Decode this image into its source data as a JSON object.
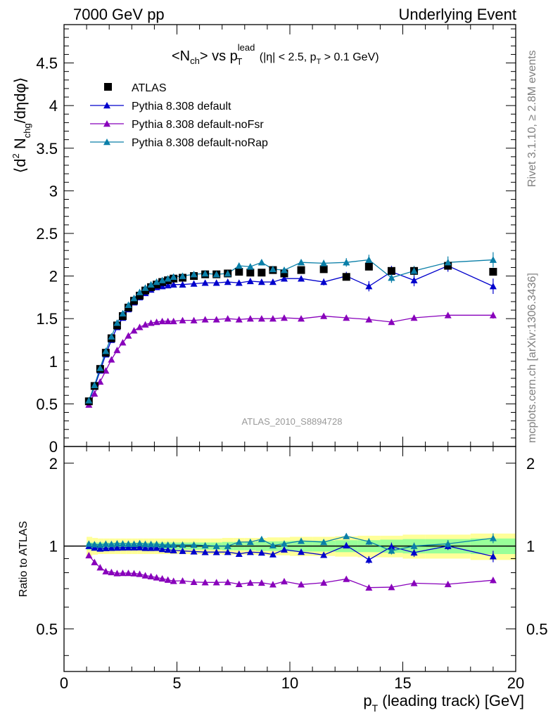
{
  "header": {
    "left": "7000 GeV pp",
    "right": "Underlying Event"
  },
  "side_labels": {
    "rivet": "Rivet 3.1.10, ≥ 2.8M events",
    "mcplots": "mcplots.cern.ch [arXiv:1306.3436]"
  },
  "chart_data": {
    "type": "scatter",
    "title_parts": {
      "lhs": "<N",
      "lhs_sub": "ch",
      "vs": "> vs p",
      "vs_sub": "T",
      "vs_sup": "lead",
      "cuts": "(|η| < 2.5, p",
      "cuts_sub": "T",
      "cuts_end": " > 0.1 GeV)"
    },
    "analysis_label": "ATLAS_2010_S8894728",
    "ylabel": "⟨d² N_chg/dηdφ⟩",
    "ratio_ylabel": "Ratio to ATLAS",
    "xlabel": "p_T (leading track) [GeV]",
    "xlim": [
      0,
      20
    ],
    "ylim": [
      0,
      4.95
    ],
    "ratio_ylim": [
      0.35,
      2.3
    ],
    "x_ticks": [
      "0",
      "5",
      "10",
      "15",
      "20"
    ],
    "y_ticks": [
      "0",
      "0.5",
      "1",
      "1.5",
      "2",
      "2.5",
      "3",
      "3.5",
      "4",
      "4.5"
    ],
    "ratio_ticks": [
      "0.5",
      "1",
      "2"
    ],
    "legend_position": "top-left",
    "x": [
      1.1,
      1.35,
      1.6,
      1.85,
      2.1,
      2.35,
      2.6,
      2.85,
      3.1,
      3.35,
      3.6,
      3.85,
      4.1,
      4.35,
      4.6,
      4.85,
      5.25,
      5.75,
      6.25,
      6.75,
      7.25,
      7.75,
      8.25,
      8.75,
      9.25,
      9.75,
      10.5,
      11.5,
      12.5,
      13.5,
      14.5,
      15.5,
      17.0,
      19.0
    ],
    "band_edges": [
      1.0,
      1.25,
      1.5,
      1.75,
      2.0,
      2.25,
      2.5,
      2.75,
      3.0,
      3.25,
      3.5,
      3.75,
      4.0,
      4.25,
      4.5,
      4.75,
      5.0,
      5.5,
      6.0,
      6.5,
      7.0,
      7.5,
      8.0,
      8.5,
      9.0,
      9.5,
      10.0,
      11.0,
      12.0,
      13.0,
      14.0,
      15.0,
      16.0,
      18.0,
      20.0
    ],
    "band_stat": [
      0.03,
      0.03,
      0.03,
      0.03,
      0.03,
      0.03,
      0.03,
      0.03,
      0.03,
      0.03,
      0.03,
      0.03,
      0.03,
      0.03,
      0.03,
      0.03,
      0.03,
      0.03,
      0.03,
      0.03,
      0.035,
      0.035,
      0.035,
      0.04,
      0.04,
      0.04,
      0.045,
      0.045,
      0.05,
      0.05,
      0.055,
      0.06,
      0.06,
      0.065
    ],
    "band_total": [
      0.08,
      0.07,
      0.065,
      0.065,
      0.065,
      0.065,
      0.065,
      0.065,
      0.065,
      0.065,
      0.065,
      0.065,
      0.065,
      0.065,
      0.065,
      0.065,
      0.065,
      0.065,
      0.065,
      0.065,
      0.07,
      0.07,
      0.07,
      0.07,
      0.075,
      0.075,
      0.08,
      0.08,
      0.085,
      0.09,
      0.09,
      0.1,
      0.1,
      0.11
    ],
    "atlas": [
      0.53,
      0.71,
      0.91,
      1.1,
      1.27,
      1.42,
      1.53,
      1.63,
      1.71,
      1.77,
      1.83,
      1.87,
      1.9,
      1.93,
      1.95,
      1.97,
      1.98,
      2.0,
      2.02,
      2.02,
      2.03,
      2.05,
      2.04,
      2.04,
      2.07,
      2.03,
      2.07,
      2.08,
      1.99,
      2.11,
      2.06,
      2.06,
      2.12,
      2.05
    ],
    "series": [
      {
        "name": "Pythia 8.308 default",
        "color": "#0000cc",
        "values": [
          0.53,
          0.7,
          0.89,
          1.08,
          1.25,
          1.4,
          1.51,
          1.61,
          1.69,
          1.75,
          1.8,
          1.84,
          1.87,
          1.88,
          1.89,
          1.9,
          1.9,
          1.91,
          1.92,
          1.92,
          1.93,
          1.92,
          1.94,
          1.93,
          1.93,
          1.97,
          1.97,
          1.93,
          2.0,
          1.88,
          2.05,
          1.95,
          2.12,
          1.88
        ],
        "errors": [
          0.01,
          0.01,
          0.01,
          0.01,
          0.01,
          0.01,
          0.01,
          0.01,
          0.01,
          0.01,
          0.01,
          0.01,
          0.01,
          0.01,
          0.01,
          0.01,
          0.01,
          0.01,
          0.01,
          0.01,
          0.01,
          0.02,
          0.02,
          0.02,
          0.02,
          0.03,
          0.03,
          0.04,
          0.05,
          0.06,
          0.07,
          0.07,
          0.07,
          0.09
        ]
      },
      {
        "name": "Pythia 8.308 default-noFsr",
        "color": "#8800bb",
        "values": [
          0.49,
          0.62,
          0.76,
          0.89,
          1.02,
          1.13,
          1.22,
          1.3,
          1.36,
          1.4,
          1.43,
          1.45,
          1.46,
          1.47,
          1.47,
          1.47,
          1.48,
          1.48,
          1.49,
          1.49,
          1.5,
          1.49,
          1.5,
          1.5,
          1.5,
          1.51,
          1.5,
          1.53,
          1.51,
          1.49,
          1.46,
          1.51,
          1.54,
          1.54
        ],
        "errors": [
          0.01,
          0.01,
          0.01,
          0.01,
          0.01,
          0.01,
          0.01,
          0.01,
          0.01,
          0.01,
          0.01,
          0.01,
          0.01,
          0.01,
          0.01,
          0.01,
          0.01,
          0.01,
          0.01,
          0.01,
          0.01,
          0.01,
          0.01,
          0.01,
          0.01,
          0.02,
          0.02,
          0.02,
          0.02,
          0.03,
          0.03,
          0.03,
          0.03,
          0.04
        ]
      },
      {
        "name": "Pythia 8.308 default-noRap",
        "color": "#0a7fa8",
        "values": [
          0.54,
          0.72,
          0.92,
          1.12,
          1.29,
          1.45,
          1.56,
          1.66,
          1.74,
          1.81,
          1.86,
          1.9,
          1.93,
          1.95,
          1.97,
          1.99,
          2.0,
          2.02,
          2.03,
          2.02,
          2.03,
          2.12,
          2.11,
          2.16,
          2.08,
          2.07,
          2.16,
          2.15,
          2.16,
          2.19,
          1.98,
          2.06,
          2.16,
          2.19
        ],
        "errors": [
          0.01,
          0.01,
          0.01,
          0.01,
          0.01,
          0.01,
          0.01,
          0.01,
          0.01,
          0.01,
          0.01,
          0.01,
          0.01,
          0.01,
          0.01,
          0.01,
          0.01,
          0.01,
          0.01,
          0.01,
          0.02,
          0.02,
          0.02,
          0.02,
          0.03,
          0.03,
          0.03,
          0.04,
          0.05,
          0.06,
          0.06,
          0.06,
          0.07,
          0.09
        ]
      }
    ],
    "atlas_label": "ATLAS",
    "colors": {
      "band_total": "#ffff99",
      "band_stat": "#99ff99",
      "atlas_marker": "#000000"
    }
  }
}
